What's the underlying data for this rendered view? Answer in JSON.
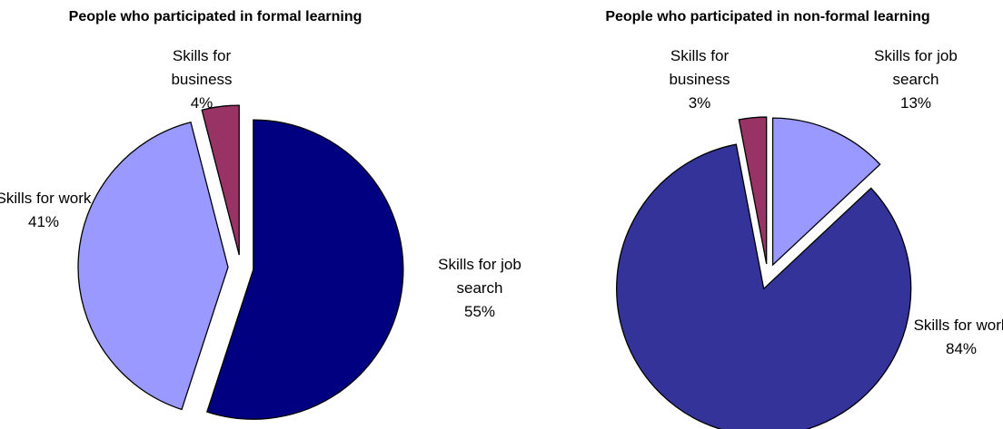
{
  "chart_data": [
    {
      "type": "pie",
      "title": "People who participated in formal learning",
      "categories": [
        "Skills for job search",
        "Skills for work",
        "Skills for business"
      ],
      "values": [
        55,
        41,
        4
      ],
      "value_labels": [
        "55%",
        "41%",
        "4%"
      ],
      "colors": [
        "#000080",
        "#9999ff",
        "#993366"
      ]
    },
    {
      "type": "pie",
      "title": "People who participated in non-formal learning",
      "categories": [
        "Skills for job search",
        "Skills for work",
        "Skills for business"
      ],
      "values": [
        13,
        84,
        3
      ],
      "value_labels": [
        "13%",
        "84%",
        "3%"
      ],
      "colors": [
        "#9999ff",
        "#333399",
        "#993366"
      ]
    }
  ]
}
